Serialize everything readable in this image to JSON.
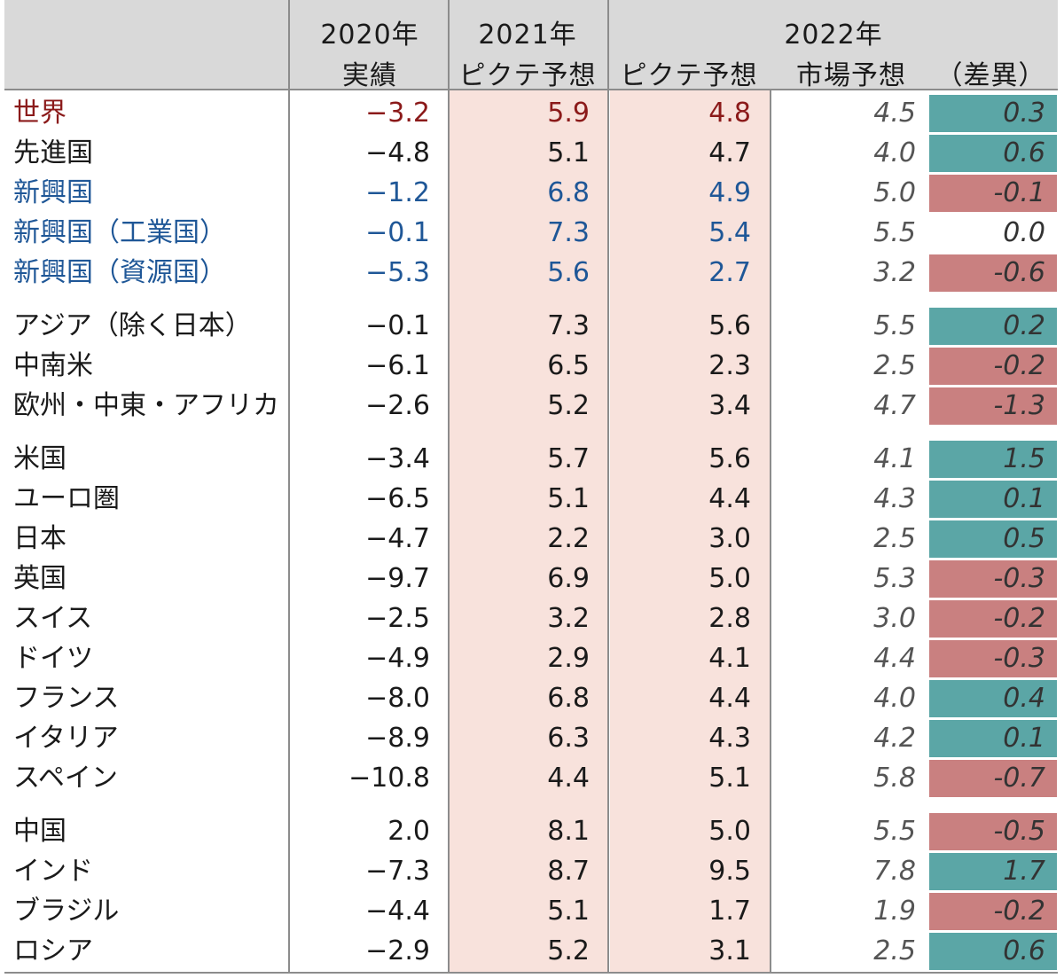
{
  "header": {
    "col_2020_year": "2020年",
    "col_2020_sub": "実績",
    "col_2021_year": "2021年",
    "col_2021_sub": "ピクテ予想",
    "col_2022_year": "2022年",
    "col_2022_pictet": "ピクテ予想",
    "col_2022_market": "市場予想",
    "col_2022_diff": "（差異）"
  },
  "colors": {
    "header_bg": "#d9d9d9",
    "pictet_bg": "#f8e2dc",
    "positive_diff": "#5ba6a6",
    "negative_diff": "#c98080",
    "world_text": "#8b1a1a",
    "emerging_text": "#1f5797"
  },
  "rows": [
    {
      "label": "世界",
      "v2020": "−3.2",
      "v2021": "5.9",
      "v2022": "4.8",
      "market": "4.5",
      "diff": "0.3",
      "sign": "pos",
      "color": "red"
    },
    {
      "label": "先進国",
      "v2020": "−4.8",
      "v2021": "5.1",
      "v2022": "4.7",
      "market": "4.0",
      "diff": "0.6",
      "sign": "pos",
      "color": ""
    },
    {
      "label": "新興国",
      "v2020": "−1.2",
      "v2021": "6.8",
      "v2022": "4.9",
      "market": "5.0",
      "diff": "-0.1",
      "sign": "neg",
      "color": "blue"
    },
    {
      "label": "新興国（工業国）",
      "v2020": "−0.1",
      "v2021": "7.3",
      "v2022": "5.4",
      "market": "5.5",
      "diff": "0.0",
      "sign": "zero",
      "color": "blue"
    },
    {
      "label": "新興国（資源国）",
      "v2020": "−5.3",
      "v2021": "5.6",
      "v2022": "2.7",
      "market": "3.2",
      "diff": "-0.6",
      "sign": "neg",
      "color": "blue"
    },
    {
      "label": "アジア（除く日本）",
      "v2020": "−0.1",
      "v2021": "7.3",
      "v2022": "5.6",
      "market": "5.5",
      "diff": "0.2",
      "sign": "pos",
      "color": ""
    },
    {
      "label": "中南米",
      "v2020": "−6.1",
      "v2021": "6.5",
      "v2022": "2.3",
      "market": "2.5",
      "diff": "-0.2",
      "sign": "neg",
      "color": ""
    },
    {
      "label": "欧州・中東・アフリカ",
      "v2020": "−2.6",
      "v2021": "5.2",
      "v2022": "3.4",
      "market": "4.7",
      "diff": "-1.3",
      "sign": "neg",
      "color": ""
    },
    {
      "label": "米国",
      "v2020": "−3.4",
      "v2021": "5.7",
      "v2022": "5.6",
      "market": "4.1",
      "diff": "1.5",
      "sign": "pos",
      "color": ""
    },
    {
      "label": "ユーロ圏",
      "v2020": "−6.5",
      "v2021": "5.1",
      "v2022": "4.4",
      "market": "4.3",
      "diff": "0.1",
      "sign": "pos",
      "color": ""
    },
    {
      "label": "日本",
      "v2020": "−4.7",
      "v2021": "2.2",
      "v2022": "3.0",
      "market": "2.5",
      "diff": "0.5",
      "sign": "pos",
      "color": ""
    },
    {
      "label": "英国",
      "v2020": "−9.7",
      "v2021": "6.9",
      "v2022": "5.0",
      "market": "5.3",
      "diff": "-0.3",
      "sign": "neg",
      "color": ""
    },
    {
      "label": "スイス",
      "v2020": "−2.5",
      "v2021": "3.2",
      "v2022": "2.8",
      "market": "3.0",
      "diff": "-0.2",
      "sign": "neg",
      "color": ""
    },
    {
      "label": "ドイツ",
      "v2020": "−4.9",
      "v2021": "2.9",
      "v2022": "4.1",
      "market": "4.4",
      "diff": "-0.3",
      "sign": "neg",
      "color": ""
    },
    {
      "label": "フランス",
      "v2020": "−8.0",
      "v2021": "6.8",
      "v2022": "4.4",
      "market": "4.0",
      "diff": "0.4",
      "sign": "pos",
      "color": ""
    },
    {
      "label": "イタリア",
      "v2020": "−8.9",
      "v2021": "6.3",
      "v2022": "4.3",
      "market": "4.2",
      "diff": "0.1",
      "sign": "pos",
      "color": ""
    },
    {
      "label": "スペイン",
      "v2020": "−10.8",
      "v2021": "4.4",
      "v2022": "5.1",
      "market": "5.8",
      "diff": "-0.7",
      "sign": "neg",
      "color": ""
    },
    {
      "label": "中国",
      "v2020": "2.0",
      "v2021": "8.1",
      "v2022": "5.0",
      "market": "5.5",
      "diff": "-0.5",
      "sign": "neg",
      "color": ""
    },
    {
      "label": "インド",
      "v2020": "−7.3",
      "v2021": "8.7",
      "v2022": "9.5",
      "market": "7.8",
      "diff": "1.7",
      "sign": "pos",
      "color": ""
    },
    {
      "label": "ブラジル",
      "v2020": "−4.4",
      "v2021": "5.1",
      "v2022": "1.7",
      "market": "1.9",
      "diff": "-0.2",
      "sign": "neg",
      "color": ""
    },
    {
      "label": "ロシア",
      "v2020": "−2.9",
      "v2021": "5.2",
      "v2022": "3.1",
      "market": "2.5",
      "diff": "0.6",
      "sign": "pos",
      "color": ""
    }
  ]
}
